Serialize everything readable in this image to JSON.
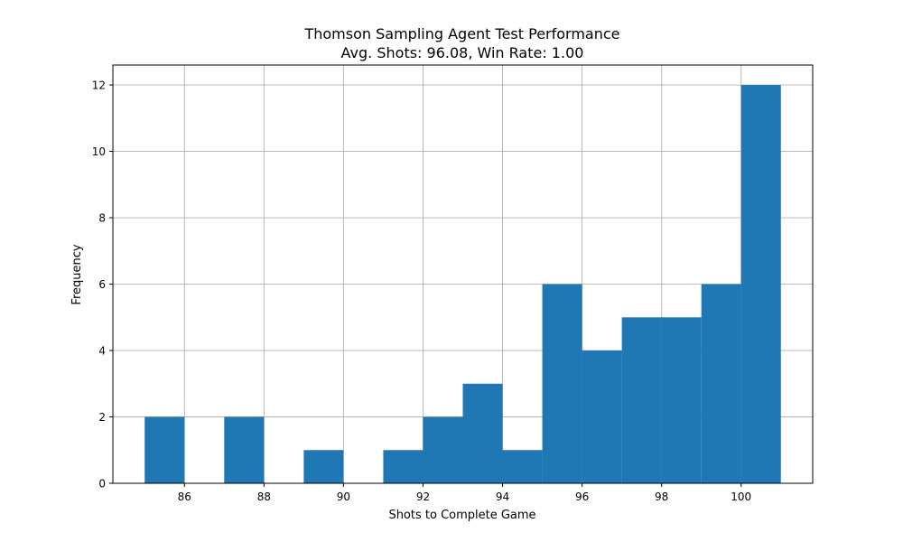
{
  "chart_data": {
    "type": "bar",
    "title": "Thomson Sampling Agent Test Performance",
    "subtitle": "Avg. Shots: 96.08, Win Rate: 1.00",
    "xlabel": "Shots to Complete Game",
    "ylabel": "Frequency",
    "xlim": [
      84.2,
      101.8
    ],
    "ylim": [
      0,
      12.6
    ],
    "xticks": [
      86,
      88,
      90,
      92,
      94,
      96,
      98,
      100
    ],
    "yticks": [
      0,
      2,
      4,
      6,
      8,
      10,
      12
    ],
    "grid": true,
    "bins": [
      {
        "x0": 85,
        "x1": 86,
        "count": 2
      },
      {
        "x0": 86,
        "x1": 87,
        "count": 0
      },
      {
        "x0": 87,
        "x1": 88,
        "count": 2
      },
      {
        "x0": 88,
        "x1": 89,
        "count": 0
      },
      {
        "x0": 89,
        "x1": 90,
        "count": 1
      },
      {
        "x0": 90,
        "x1": 91,
        "count": 0
      },
      {
        "x0": 91,
        "x1": 92,
        "count": 1
      },
      {
        "x0": 92,
        "x1": 93,
        "count": 2
      },
      {
        "x0": 93,
        "x1": 94,
        "count": 3
      },
      {
        "x0": 94,
        "x1": 95,
        "count": 1
      },
      {
        "x0": 95,
        "x1": 96,
        "count": 6
      },
      {
        "x0": 96,
        "x1": 97,
        "count": 4
      },
      {
        "x0": 97,
        "x1": 98,
        "count": 5
      },
      {
        "x0": 98,
        "x1": 99,
        "count": 5
      },
      {
        "x0": 99,
        "x1": 100,
        "count": 6
      },
      {
        "x0": 100,
        "x1": 101,
        "count": 12
      }
    ],
    "bar_color": "#1f77b4"
  }
}
